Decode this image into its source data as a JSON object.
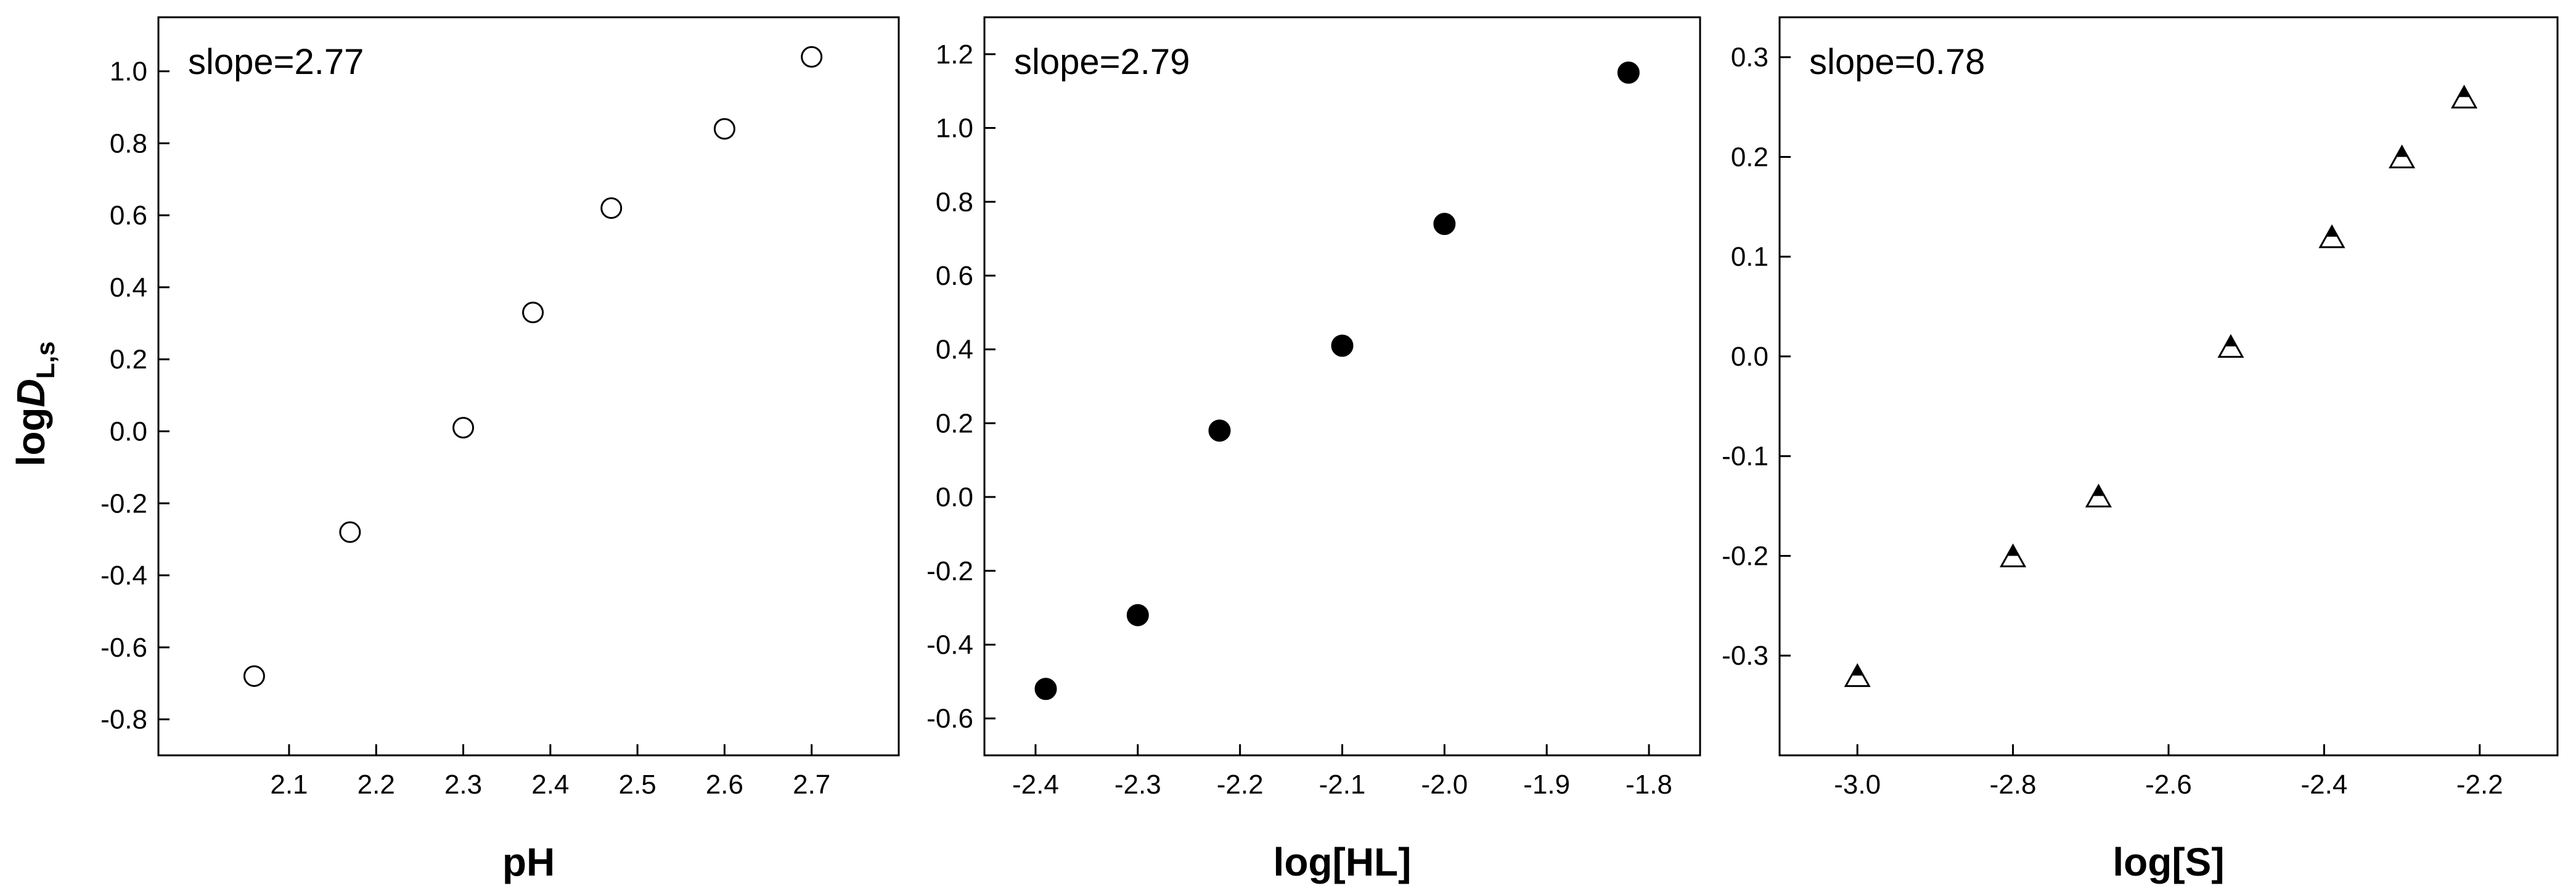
{
  "figure": {
    "ylabel": {
      "main": "log",
      "italic": "D",
      "sub": "L,s"
    }
  },
  "chart_data": [
    {
      "type": "scatter",
      "xlabel": "pH",
      "annotation": "slope=2.77",
      "xlim": [
        1.95,
        2.8
      ],
      "ylim": [
        -0.9,
        1.15
      ],
      "xticks": [
        2.1,
        2.2,
        2.3,
        2.4,
        2.5,
        2.6,
        2.7
      ],
      "xtick_labels": [
        "2.1",
        "2.2",
        "2.3",
        "2.4",
        "2.5",
        "2.6",
        "2.7"
      ],
      "yticks": [
        -0.8,
        -0.6,
        -0.4,
        -0.2,
        0.0,
        0.2,
        0.4,
        0.6,
        0.8,
        1.0
      ],
      "ytick_labels": [
        "-0.8",
        "-0.6",
        "-0.4",
        "-0.2",
        "0.0",
        "0.2",
        "0.4",
        "0.6",
        "0.8",
        "1.0"
      ],
      "marker": "open-circle",
      "series": [
        {
          "x": [
            2.06,
            2.17,
            2.3,
            2.38,
            2.47,
            2.6,
            2.7
          ],
          "y": [
            -0.68,
            -0.28,
            0.01,
            0.33,
            0.62,
            0.84,
            1.04
          ]
        }
      ]
    },
    {
      "type": "scatter",
      "xlabel": "log[HL]",
      "annotation": "slope=2.79",
      "xlim": [
        -2.45,
        -1.75
      ],
      "ylim": [
        -0.7,
        1.3
      ],
      "xticks": [
        -2.4,
        -2.3,
        -2.2,
        -2.1,
        -2.0,
        -1.9,
        -1.8
      ],
      "xtick_labels": [
        "-2.4",
        "-2.3",
        "-2.2",
        "-2.1",
        "-2.0",
        "-1.9",
        "-1.8"
      ],
      "yticks": [
        -0.6,
        -0.4,
        -0.2,
        0.0,
        0.2,
        0.4,
        0.6,
        0.8,
        1.0,
        1.2
      ],
      "ytick_labels": [
        "-0.6",
        "-0.4",
        "-0.2",
        "0.0",
        "0.2",
        "0.4",
        "0.6",
        "0.8",
        "1.0",
        "1.2"
      ],
      "marker": "filled-circle",
      "series": [
        {
          "x": [
            -2.39,
            -2.3,
            -2.22,
            -2.1,
            -2.0,
            -1.82
          ],
          "y": [
            -0.52,
            -0.32,
            0.18,
            0.41,
            0.74,
            1.15
          ]
        }
      ]
    },
    {
      "type": "scatter",
      "xlabel": "log[S]",
      "annotation": "slope=0.78",
      "xlim": [
        -3.1,
        -2.1
      ],
      "ylim": [
        -0.4,
        0.34
      ],
      "xticks": [
        -3.0,
        -2.8,
        -2.6,
        -2.4,
        -2.2
      ],
      "xtick_labels": [
        "-3.0",
        "-2.8",
        "-2.6",
        "-2.4",
        "-2.2"
      ],
      "yticks": [
        -0.3,
        -0.2,
        -0.1,
        0.0,
        0.1,
        0.2,
        0.3
      ],
      "ytick_labels": [
        "-0.3",
        "-0.2",
        "-0.1",
        "0.0",
        "0.1",
        "0.2",
        "0.3"
      ],
      "marker": "half-filled-triangle",
      "series": [
        {
          "x": [
            -3.0,
            -2.8,
            -2.69,
            -2.52,
            -2.39,
            -2.3,
            -2.22
          ],
          "y": [
            -0.32,
            -0.2,
            -0.14,
            0.01,
            0.12,
            0.2,
            0.26
          ]
        }
      ]
    }
  ]
}
